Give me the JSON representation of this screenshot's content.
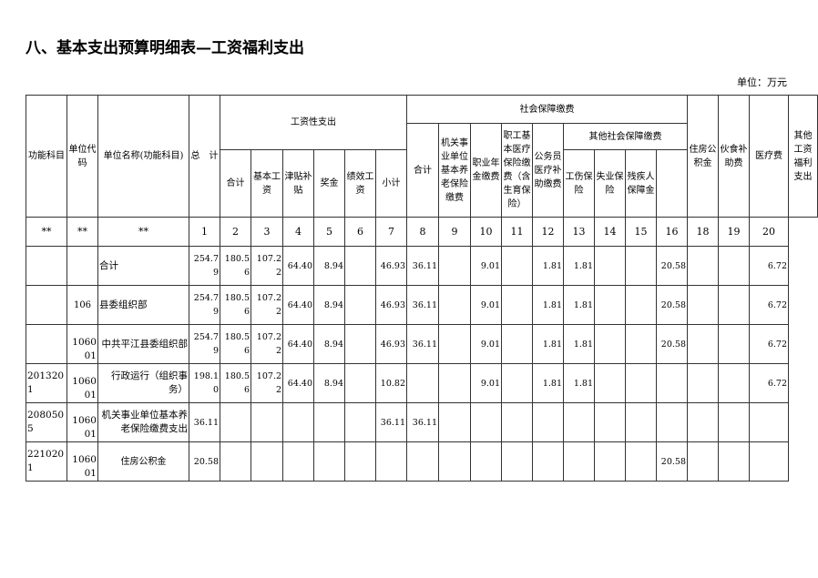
{
  "title": "八、基本支出预算明细表—工资福利支出",
  "unit": "单位：万元",
  "headers": {
    "func": "功能科目",
    "code": "单位代码",
    "name": "单位名称(功能科目)",
    "total": "总　计",
    "wage": "工资性支出",
    "social": "社会保障缴费",
    "housing": "住房公积金",
    "meal": "伙食补助费",
    "medical": "医疗费",
    "other": "其他工资福利支出",
    "social_total": "合计",
    "pension": "机关事业单位基本养老保险缴费",
    "annuity": "职业年金缴费",
    "med_ins": "职工基本医疗保险缴费（含生育保险）",
    "civil_med": "公务员医疗补助缴费",
    "other_social": "其他社会保障缴费",
    "wage_total": "合计",
    "basic": "基本工资",
    "allowance": "津贴补贴",
    "bonus": "奖金",
    "perf": "绩效工资",
    "subtotal": "小计",
    "injury": "工伤保险",
    "unemp": "失业保险",
    "disabled": "残疾人保障金"
  },
  "col_numbers": [
    "**",
    "**",
    "**",
    "1",
    "2",
    "3",
    "4",
    "5",
    "6",
    "7",
    "8",
    "9",
    "10",
    "11",
    "12",
    "13",
    "14",
    "15",
    "16",
    "18",
    "19",
    "20"
  ],
  "rows": [
    {
      "func": "",
      "code": "",
      "name": "合计",
      "align": "left",
      "v": [
        "254.79",
        "180.56",
        "107.22",
        "64.40",
        "8.94",
        "",
        "46.93",
        "36.11",
        "",
        "9.01",
        "",
        "1.81",
        "1.81",
        "",
        "",
        "20.58",
        "",
        "",
        "6.72"
      ]
    },
    {
      "func": "",
      "code": "106",
      "name": "县委组织部",
      "align": "left",
      "v": [
        "254.79",
        "180.56",
        "107.22",
        "64.40",
        "8.94",
        "",
        "46.93",
        "36.11",
        "",
        "9.01",
        "",
        "1.81",
        "1.81",
        "",
        "",
        "20.58",
        "",
        "",
        "6.72"
      ]
    },
    {
      "func": "",
      "code": "106001",
      "name": "中共平江县委组织部",
      "align": "right",
      "v": [
        "254.79",
        "180.56",
        "107.22",
        "64.40",
        "8.94",
        "",
        "46.93",
        "36.11",
        "",
        "9.01",
        "",
        "1.81",
        "1.81",
        "",
        "",
        "20.58",
        "",
        "",
        "6.72"
      ]
    },
    {
      "func": "2013201",
      "code": "106001",
      "name": "行政运行（组织事务）",
      "align": "right",
      "v": [
        "198.10",
        "180.56",
        "107.22",
        "64.40",
        "8.94",
        "",
        "10.82",
        "",
        "",
        "9.01",
        "",
        "1.81",
        "1.81",
        "",
        "",
        "",
        "",
        "",
        "6.72"
      ]
    },
    {
      "func": "2080505",
      "code": "106001",
      "name": "机关事业单位基本养老保险缴费支出",
      "align": "right",
      "v": [
        "36.11",
        "",
        "",
        "",
        "",
        "",
        "36.11",
        "36.11",
        "",
        "",
        "",
        "",
        "",
        "",
        "",
        "",
        "",
        "",
        ""
      ]
    },
    {
      "func": "2210201",
      "code": "106001",
      "name": "住房公积金",
      "align": "center",
      "v": [
        "20.58",
        "",
        "",
        "",
        "",
        "",
        "",
        "",
        "",
        "",
        "",
        "",
        "",
        "",
        "",
        "20.58",
        "",
        "",
        ""
      ]
    }
  ]
}
